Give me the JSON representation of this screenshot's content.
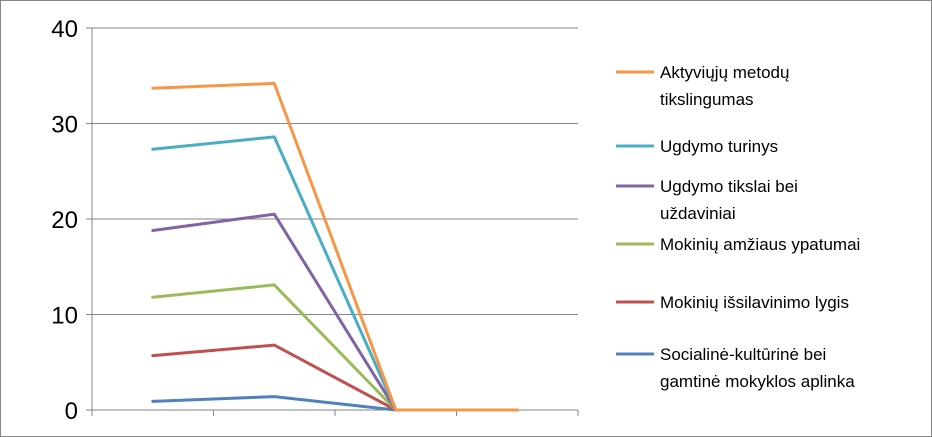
{
  "chart_data": {
    "type": "line",
    "title": "",
    "xlabel": "",
    "ylabel": "",
    "categories": [
      "",
      "",
      "",
      ""
    ],
    "ylim": [
      0,
      40
    ],
    "yticks": [
      0,
      10,
      20,
      30,
      40
    ],
    "grid": "horizontal",
    "legend_position": "right",
    "series": [
      {
        "name": "Aktyviųjų metodų tikslingumas",
        "name_lines": [
          "Aktyviųjų metodų",
          "tikslingumas"
        ],
        "color": "#F79646",
        "values": [
          33.7,
          34.2,
          0,
          0
        ]
      },
      {
        "name": "Ugdymo turinys",
        "name_lines": [
          "Ugdymo turinys"
        ],
        "color": "#4BACC6",
        "values": [
          27.3,
          28.6,
          0,
          0
        ]
      },
      {
        "name": "Ugdymo tikslai bei uždaviniai",
        "name_lines": [
          "Ugdymo tikslai bei",
          "uždaviniai"
        ],
        "color": "#8064A2",
        "values": [
          18.8,
          20.5,
          0,
          0
        ]
      },
      {
        "name": "Mokinių amžiaus ypatumai",
        "name_lines": [
          "Mokinių amžiaus ypatumai"
        ],
        "color": "#9BBB59",
        "values": [
          11.8,
          13.1,
          0,
          0
        ]
      },
      {
        "name": "Mokinių išsilavinimo lygis",
        "name_lines": [
          "Mokinių išsilavinimo lygis"
        ],
        "color": "#C0504D",
        "values": [
          5.7,
          6.8,
          0,
          0
        ]
      },
      {
        "name": "Socialinė-kultūrinė bei gamtinė mokyklos aplinka",
        "name_lines": [
          "Socialinė-kultūrinė bei",
          "gamtinė mokyklos aplinka"
        ],
        "color": "#4F81BD",
        "values": [
          0.9,
          1.4,
          0,
          0
        ]
      }
    ]
  }
}
